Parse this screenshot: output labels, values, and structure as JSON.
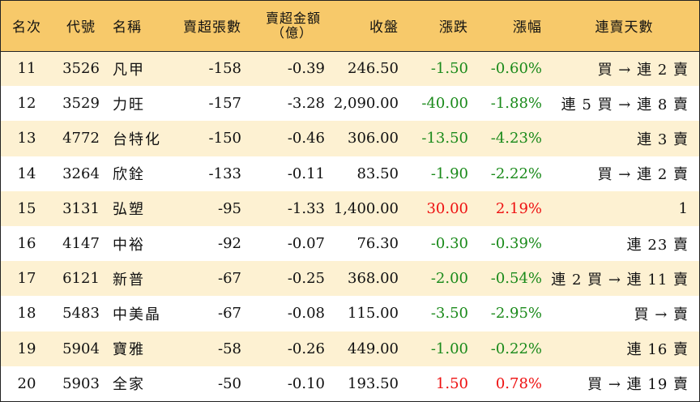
{
  "header": {
    "rank": "名次",
    "code": "代號",
    "name": "名稱",
    "net_sell_lots": "賣超張數",
    "net_sell_amount_line1": "賣超金額",
    "net_sell_amount_line2": "（億）",
    "close": "收盤",
    "change": "漲跌",
    "change_pct": "漲幅",
    "streak": "連賣天數"
  },
  "colors": {
    "header_bg": "#f7c96a",
    "odd_row_bg": "#fdf1d2",
    "down_color": "#1a8a1a",
    "up_color": "#ee1111"
  },
  "rows": [
    {
      "rank": "11",
      "code": "3526",
      "name": "凡甲",
      "lots": "-158",
      "amount": "-0.39",
      "close": "246.50",
      "change": "-1.50",
      "pct": "-0.60%",
      "streak": "買 → 連 2 賣",
      "dir": "down"
    },
    {
      "rank": "12",
      "code": "3529",
      "name": "力旺",
      "lots": "-157",
      "amount": "-3.28",
      "close": "2,090.00",
      "change": "-40.00",
      "pct": "-1.88%",
      "streak": "連 5 買 → 連 8 賣",
      "dir": "down"
    },
    {
      "rank": "13",
      "code": "4772",
      "name": "台特化",
      "lots": "-150",
      "amount": "-0.46",
      "close": "306.00",
      "change": "-13.50",
      "pct": "-4.23%",
      "streak": "連 3 賣",
      "dir": "down"
    },
    {
      "rank": "14",
      "code": "3264",
      "name": "欣銓",
      "lots": "-133",
      "amount": "-0.11",
      "close": "83.50",
      "change": "-1.90",
      "pct": "-2.22%",
      "streak": "買 → 連 2 賣",
      "dir": "down"
    },
    {
      "rank": "15",
      "code": "3131",
      "name": "弘塑",
      "lots": "-95",
      "amount": "-1.33",
      "close": "1,400.00",
      "change": "30.00",
      "pct": "2.19%",
      "streak": "1",
      "dir": "up"
    },
    {
      "rank": "16",
      "code": "4147",
      "name": "中裕",
      "lots": "-92",
      "amount": "-0.07",
      "close": "76.30",
      "change": "-0.30",
      "pct": "-0.39%",
      "streak": "連 23 賣",
      "dir": "down"
    },
    {
      "rank": "17",
      "code": "6121",
      "name": "新普",
      "lots": "-67",
      "amount": "-0.25",
      "close": "368.00",
      "change": "-2.00",
      "pct": "-0.54%",
      "streak": "連 2 買 → 連 11 賣",
      "dir": "down"
    },
    {
      "rank": "18",
      "code": "5483",
      "name": "中美晶",
      "lots": "-67",
      "amount": "-0.08",
      "close": "115.00",
      "change": "-3.50",
      "pct": "-2.95%",
      "streak": "買 → 賣",
      "dir": "down"
    },
    {
      "rank": "19",
      "code": "5904",
      "name": "寶雅",
      "lots": "-58",
      "amount": "-0.26",
      "close": "449.00",
      "change": "-1.00",
      "pct": "-0.22%",
      "streak": "連 16 賣",
      "dir": "down"
    },
    {
      "rank": "20",
      "code": "5903",
      "name": "全家",
      "lots": "-50",
      "amount": "-0.10",
      "close": "193.50",
      "change": "1.50",
      "pct": "0.78%",
      "streak": "買 → 連 19 賣",
      "dir": "up"
    }
  ]
}
